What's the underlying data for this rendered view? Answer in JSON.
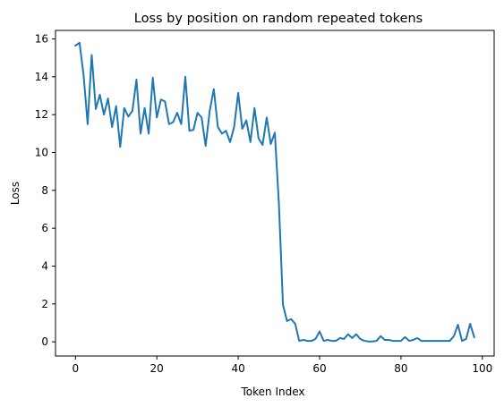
{
  "chart_data": {
    "type": "line",
    "title": "Loss by position on random repeated tokens",
    "xlabel": "Token Index",
    "ylabel": "Loss",
    "xlim": [
      -4.9,
      102.9
    ],
    "ylim": [
      -0.75,
      16.45
    ],
    "xticks": [
      0,
      20,
      40,
      60,
      80,
      100
    ],
    "yticks": [
      0,
      2,
      4,
      6,
      8,
      10,
      12,
      14,
      16
    ],
    "grid": false,
    "legend": "none",
    "line_color": "#1f77b4",
    "series": [
      {
        "x": [
          0,
          1,
          2,
          3,
          4,
          5,
          6,
          7,
          8,
          9,
          10,
          11,
          12,
          13,
          14,
          15,
          16,
          17,
          18,
          19,
          20,
          21,
          22,
          23,
          24,
          25,
          26,
          27,
          28,
          29,
          30,
          31,
          32,
          33,
          34,
          35,
          36,
          37,
          38,
          39,
          40,
          41,
          42,
          43,
          44,
          45,
          46,
          47,
          48,
          49,
          50,
          51,
          52,
          53,
          54,
          55,
          56,
          57,
          58,
          59,
          60,
          61,
          62,
          63,
          64,
          65,
          66,
          67,
          68,
          69,
          70,
          71,
          72,
          73,
          74,
          75,
          76,
          77,
          78,
          79,
          80,
          81,
          82,
          83,
          84,
          85,
          86,
          87,
          88,
          89,
          90,
          91,
          92,
          93,
          94,
          95,
          96,
          97,
          98
        ],
        "values": [
          15.65,
          15.8,
          14.1,
          11.5,
          15.15,
          12.3,
          13.05,
          12.0,
          12.85,
          11.35,
          12.45,
          10.3,
          12.35,
          11.9,
          12.2,
          13.85,
          11.0,
          12.35,
          11.0,
          13.95,
          11.85,
          12.8,
          12.7,
          11.5,
          11.6,
          12.1,
          11.5,
          14.0,
          11.15,
          11.2,
          12.1,
          11.85,
          10.35,
          12.2,
          13.35,
          11.35,
          11.0,
          11.15,
          10.55,
          11.35,
          13.15,
          11.25,
          11.7,
          10.55,
          12.35,
          10.75,
          10.4,
          11.85,
          10.45,
          11.05,
          7.3,
          1.95,
          1.1,
          1.2,
          0.95,
          0.05,
          0.1,
          0.05,
          0.05,
          0.15,
          0.55,
          0.05,
          0.1,
          0.05,
          0.05,
          0.2,
          0.15,
          0.4,
          0.2,
          0.4,
          0.15,
          0.05,
          0.02,
          0.02,
          0.05,
          0.3,
          0.1,
          0.1,
          0.05,
          0.05,
          0.05,
          0.25,
          0.05,
          0.1,
          0.2,
          0.05,
          0.05,
          0.05,
          0.05,
          0.05,
          0.05,
          0.05,
          0.05,
          0.3,
          0.9,
          0.05,
          0.15,
          0.95,
          0.25
        ]
      }
    ]
  }
}
